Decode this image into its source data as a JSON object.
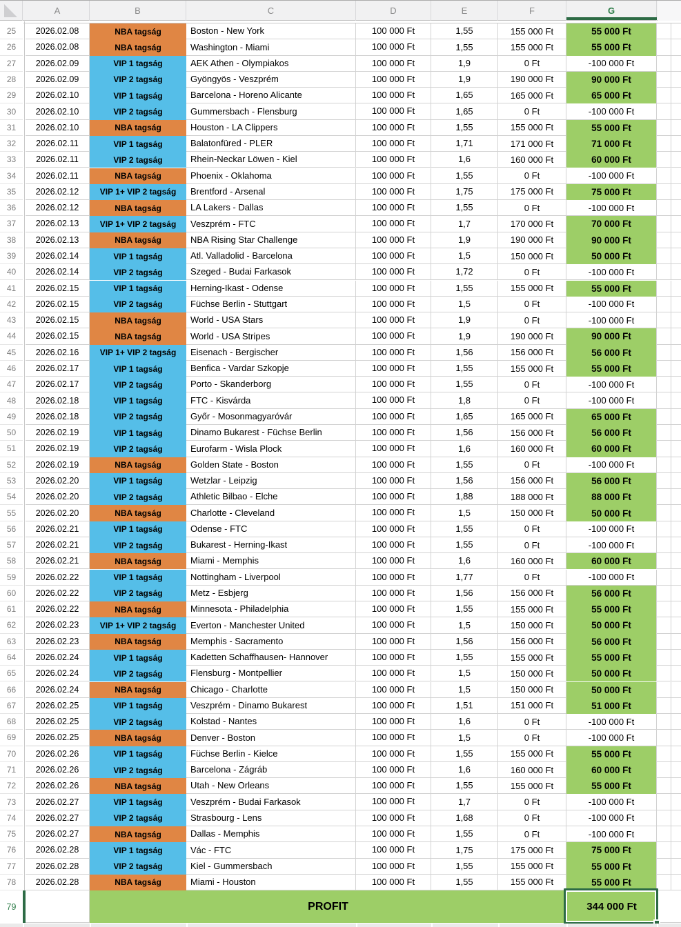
{
  "app": {
    "kind": "spreadsheet"
  },
  "colors": {
    "nba": "#E08644",
    "vip": "#55BEE8",
    "win_green": "#9DCE67",
    "selection_green": "#2D6B45",
    "selected_header_green": "#2E7D49"
  },
  "columns": {
    "letters": [
      "A",
      "B",
      "C",
      "D",
      "E",
      "F",
      "G"
    ],
    "selected_letter": "G"
  },
  "selection": {
    "cell": "G79"
  },
  "rows": [
    {
      "n": 25,
      "date": "2026.02.08",
      "member": "NBA tagság",
      "tier": "nba",
      "match": "Boston - New York",
      "stake": "100 000 Ft",
      "odds": "1,55",
      "payout": "155 000 Ft",
      "profit": "55 000 Ft",
      "win": true
    },
    {
      "n": 26,
      "date": "2026.02.08",
      "member": "NBA tagság",
      "tier": "nba",
      "match": "Washington - Miami",
      "stake": "100 000 Ft",
      "odds": "1,55",
      "payout": "155 000 Ft",
      "profit": "55 000 Ft",
      "win": true
    },
    {
      "n": 27,
      "date": "2026.02.09",
      "member": "VIP 1 tagság",
      "tier": "vip",
      "match": "AEK Athen - Olympiakos",
      "stake": "100 000 Ft",
      "odds": "1,9",
      "payout": "0 Ft",
      "profit": "-100 000 Ft",
      "win": false
    },
    {
      "n": 28,
      "date": "2026.02.09",
      "member": "VIP 2 tagság",
      "tier": "vip",
      "match": "Gyöngyös - Veszprém",
      "stake": "100 000 Ft",
      "odds": "1,9",
      "payout": "190 000 Ft",
      "profit": "90 000 Ft",
      "win": true
    },
    {
      "n": 29,
      "date": "2026.02.10",
      "member": "VIP 1 tagság",
      "tier": "vip",
      "match": "Barcelona - Horeno Alicante",
      "stake": "100 000 Ft",
      "odds": "1,65",
      "payout": "165 000 Ft",
      "profit": "65 000 Ft",
      "win": true
    },
    {
      "n": 30,
      "date": "2026.02.10",
      "member": "VIP 2 tagság",
      "tier": "vip",
      "match": "Gummersbach - Flensburg",
      "stake": "100 000 Ft",
      "odds": "1,65",
      "payout": "0 Ft",
      "profit": "-100 000 Ft",
      "win": false
    },
    {
      "n": 31,
      "date": "2026.02.10",
      "member": "NBA tagság",
      "tier": "nba",
      "match": "Houston - LA Clippers",
      "stake": "100 000 Ft",
      "odds": "1,55",
      "payout": "155 000 Ft",
      "profit": "55 000 Ft",
      "win": true
    },
    {
      "n": 32,
      "date": "2026.02.11",
      "member": "VIP 1 tagság",
      "tier": "vip",
      "match": "Balatonfüred - PLER",
      "stake": "100 000 Ft",
      "odds": "1,71",
      "payout": "171 000 Ft",
      "profit": "71 000 Ft",
      "win": true
    },
    {
      "n": 33,
      "date": "2026.02.11",
      "member": "VIP 2 tagság",
      "tier": "vip",
      "match": "Rhein-Neckar Löwen - Kiel",
      "stake": "100 000 Ft",
      "odds": "1,6",
      "payout": "160 000 Ft",
      "profit": "60 000 Ft",
      "win": true
    },
    {
      "n": 34,
      "date": "2026.02.11",
      "member": "NBA tagság",
      "tier": "nba",
      "match": "Phoenix - Oklahoma",
      "stake": "100 000 Ft",
      "odds": "1,55",
      "payout": "0 Ft",
      "profit": "-100 000 Ft",
      "win": false
    },
    {
      "n": 35,
      "date": "2026.02.12",
      "member": "VIP 1+ VIP 2 tagság",
      "tier": "vip",
      "match": "Brentford - Arsenal",
      "stake": "100 000 Ft",
      "odds": "1,75",
      "payout": "175 000 Ft",
      "profit": "75 000 Ft",
      "win": true
    },
    {
      "n": 36,
      "date": "2026.02.12",
      "member": "NBA tagság",
      "tier": "nba",
      "match": "LA Lakers - Dallas",
      "stake": "100 000 Ft",
      "odds": "1,55",
      "payout": "0 Ft",
      "profit": "-100 000 Ft",
      "win": false
    },
    {
      "n": 37,
      "date": "2026.02.13",
      "member": "VIP 1+ VIP 2 tagság",
      "tier": "vip",
      "match": "Veszprém - FTC",
      "stake": "100 000 Ft",
      "odds": "1,7",
      "payout": "170 000 Ft",
      "profit": "70 000 Ft",
      "win": true
    },
    {
      "n": 38,
      "date": "2026.02.13",
      "member": "NBA tagság",
      "tier": "nba",
      "match": "NBA Rising Star Challenge",
      "stake": "100 000 Ft",
      "odds": "1,9",
      "payout": "190 000 Ft",
      "profit": "90 000 Ft",
      "win": true
    },
    {
      "n": 39,
      "date": "2026.02.14",
      "member": "VIP 1 tagság",
      "tier": "vip",
      "match": "Atl. Valladolid - Barcelona",
      "stake": "100 000 Ft",
      "odds": "1,5",
      "payout": "150 000 Ft",
      "profit": "50 000 Ft",
      "win": true
    },
    {
      "n": 40,
      "date": "2026.02.14",
      "member": "VIP 2 tagság",
      "tier": "vip",
      "match": "Szeged - Budai Farkasok",
      "stake": "100 000 Ft",
      "odds": "1,72",
      "payout": "0 Ft",
      "profit": "-100 000 Ft",
      "win": false
    },
    {
      "n": 41,
      "date": "2026.02.15",
      "member": "VIP 1 tagság",
      "tier": "vip",
      "match": "Herning-Ikast - Odense",
      "stake": "100 000 Ft",
      "odds": "1,55",
      "payout": "155 000 Ft",
      "profit": "55 000 Ft",
      "win": true
    },
    {
      "n": 42,
      "date": "2026.02.15",
      "member": "VIP 2 tagság",
      "tier": "vip",
      "match": "Füchse Berlin - Stuttgart",
      "stake": "100 000 Ft",
      "odds": "1,5",
      "payout": "0 Ft",
      "profit": "-100 000 Ft",
      "win": false
    },
    {
      "n": 43,
      "date": "2026.02.15",
      "member": "NBA tagság",
      "tier": "nba",
      "match": "World - USA Stars",
      "stake": "100 000 Ft",
      "odds": "1,9",
      "payout": "0 Ft",
      "profit": "-100 000 Ft",
      "win": false
    },
    {
      "n": 44,
      "date": "2026.02.15",
      "member": "NBA tagság",
      "tier": "nba",
      "match": "World - USA Stripes",
      "stake": "100 000 Ft",
      "odds": "1,9",
      "payout": "190 000 Ft",
      "profit": "90 000 Ft",
      "win": true
    },
    {
      "n": 45,
      "date": "2026.02.16",
      "member": "VIP 1+ VIP 2 tagság",
      "tier": "vip",
      "match": "Eisenach - Bergischer",
      "stake": "100 000 Ft",
      "odds": "1,56",
      "payout": "156 000 Ft",
      "profit": "56 000 Ft",
      "win": true
    },
    {
      "n": 46,
      "date": "2026.02.17",
      "member": "VIP 1 tagság",
      "tier": "vip",
      "match": "Benfica - Vardar Szkopje",
      "stake": "100 000 Ft",
      "odds": "1,55",
      "payout": "155 000 Ft",
      "profit": "55 000 Ft",
      "win": true
    },
    {
      "n": 47,
      "date": "2026.02.17",
      "member": "VIP 2 tagság",
      "tier": "vip",
      "match": "Porto - Skanderborg",
      "stake": "100 000 Ft",
      "odds": "1,55",
      "payout": "0 Ft",
      "profit": "-100 000 Ft",
      "win": false
    },
    {
      "n": 48,
      "date": "2026.02.18",
      "member": "VIP 1 tagság",
      "tier": "vip",
      "match": "FTC - Kisvárda",
      "stake": "100 000 Ft",
      "odds": "1,8",
      "payout": "0 Ft",
      "profit": "-100 000 Ft",
      "win": false
    },
    {
      "n": 49,
      "date": "2026.02.18",
      "member": "VIP 2 tagság",
      "tier": "vip",
      "match": "Győr - Mosonmagyaróvár",
      "stake": "100 000 Ft",
      "odds": "1,65",
      "payout": "165 000 Ft",
      "profit": "65 000 Ft",
      "win": true
    },
    {
      "n": 50,
      "date": "2026.02.19",
      "member": "VIP 1 tagság",
      "tier": "vip",
      "match": "Dinamo Bukarest - Füchse Berlin",
      "stake": "100 000 Ft",
      "odds": "1,56",
      "payout": "156 000 Ft",
      "profit": "56 000 Ft",
      "win": true
    },
    {
      "n": 51,
      "date": "2026.02.19",
      "member": "VIP 2 tagság",
      "tier": "vip",
      "match": "Eurofarm - Wisla Plock",
      "stake": "100 000 Ft",
      "odds": "1,6",
      "payout": "160 000 Ft",
      "profit": "60 000 Ft",
      "win": true
    },
    {
      "n": 52,
      "date": "2026.02.19",
      "member": "NBA tagság",
      "tier": "nba",
      "match": "Golden State - Boston",
      "stake": "100 000 Ft",
      "odds": "1,55",
      "payout": "0 Ft",
      "profit": "-100 000 Ft",
      "win": false
    },
    {
      "n": 53,
      "date": "2026.02.20",
      "member": "VIP 1 tagság",
      "tier": "vip",
      "match": "Wetzlar - Leipzig",
      "stake": "100 000 Ft",
      "odds": "1,56",
      "payout": "156 000 Ft",
      "profit": "56 000 Ft",
      "win": true
    },
    {
      "n": 54,
      "date": "2026.02.20",
      "member": "VIP 2 tagság",
      "tier": "vip",
      "match": "Athletic Bilbao - Elche",
      "stake": "100 000 Ft",
      "odds": "1,88",
      "payout": "188 000 Ft",
      "profit": "88 000 Ft",
      "win": true
    },
    {
      "n": 55,
      "date": "2026.02.20",
      "member": "NBA tagság",
      "tier": "nba",
      "match": "Charlotte - Cleveland",
      "stake": "100 000 Ft",
      "odds": "1,5",
      "payout": "150 000 Ft",
      "profit": "50 000 Ft",
      "win": true
    },
    {
      "n": 56,
      "date": "2026.02.21",
      "member": "VIP 1 tagság",
      "tier": "vip",
      "match": "Odense - FTC",
      "stake": "100 000 Ft",
      "odds": "1,55",
      "payout": "0 Ft",
      "profit": "-100 000 Ft",
      "win": false
    },
    {
      "n": 57,
      "date": "2026.02.21",
      "member": "VIP 2 tagság",
      "tier": "vip",
      "match": "Bukarest - Herning-Ikast",
      "stake": "100 000 Ft",
      "odds": "1,55",
      "payout": "0 Ft",
      "profit": "-100 000 Ft",
      "win": false
    },
    {
      "n": 58,
      "date": "2026.02.21",
      "member": "NBA tagság",
      "tier": "nba",
      "match": "Miami - Memphis",
      "stake": "100 000 Ft",
      "odds": "1,6",
      "payout": "160 000 Ft",
      "profit": "60 000 Ft",
      "win": true
    },
    {
      "n": 59,
      "date": "2026.02.22",
      "member": "VIP 1 tagság",
      "tier": "vip",
      "match": "Nottingham - Liverpool",
      "stake": "100 000 Ft",
      "odds": "1,77",
      "payout": "0 Ft",
      "profit": "-100 000 Ft",
      "win": false
    },
    {
      "n": 60,
      "date": "2026.02.22",
      "member": "VIP 2 tagság",
      "tier": "vip",
      "match": "Metz - Esbjerg",
      "stake": "100 000 Ft",
      "odds": "1,56",
      "payout": "156 000 Ft",
      "profit": "56 000 Ft",
      "win": true
    },
    {
      "n": 61,
      "date": "2026.02.22",
      "member": "NBA tagság",
      "tier": "nba",
      "match": "Minnesota - Philadelphia",
      "stake": "100 000 Ft",
      "odds": "1,55",
      "payout": "155 000 Ft",
      "profit": "55 000 Ft",
      "win": true
    },
    {
      "n": 62,
      "date": "2026.02.23",
      "member": "VIP 1+ VIP 2 tagság",
      "tier": "vip",
      "match": "Everton - Manchester United",
      "stake": "100 000 Ft",
      "odds": "1,5",
      "payout": "150 000 Ft",
      "profit": "50 000 Ft",
      "win": true
    },
    {
      "n": 63,
      "date": "2026.02.23",
      "member": "NBA tagság",
      "tier": "nba",
      "match": "Memphis - Sacramento",
      "stake": "100 000 Ft",
      "odds": "1,56",
      "payout": "156 000 Ft",
      "profit": "56 000 Ft",
      "win": true
    },
    {
      "n": 64,
      "date": "2026.02.24",
      "member": "VIP 1 tagság",
      "tier": "vip",
      "match": "Kadetten Schaffhausen- Hannover",
      "stake": "100 000 Ft",
      "odds": "1,55",
      "payout": "155 000 Ft",
      "profit": "55 000 Ft",
      "win": true
    },
    {
      "n": 65,
      "date": "2026.02.24",
      "member": "VIP 2 tagság",
      "tier": "vip",
      "match": "Flensburg - Montpellier",
      "stake": "100 000 Ft",
      "odds": "1,5",
      "payout": "150 000 Ft",
      "profit": "50 000 Ft",
      "win": true
    },
    {
      "n": 66,
      "date": "2026.02.24",
      "member": "NBA tagság",
      "tier": "nba",
      "match": "Chicago - Charlotte",
      "stake": "100 000 Ft",
      "odds": "1,5",
      "payout": "150 000 Ft",
      "profit": "50 000 Ft",
      "win": true
    },
    {
      "n": 67,
      "date": "2026.02.25",
      "member": "VIP 1 tagság",
      "tier": "vip",
      "match": "Veszprém - Dinamo Bukarest",
      "stake": "100 000 Ft",
      "odds": "1,51",
      "payout": "151 000 Ft",
      "profit": "51 000 Ft",
      "win": true
    },
    {
      "n": 68,
      "date": "2026.02.25",
      "member": "VIP 2 tagság",
      "tier": "vip",
      "match": "Kolstad - Nantes",
      "stake": "100 000 Ft",
      "odds": "1,6",
      "payout": "0 Ft",
      "profit": "-100 000 Ft",
      "win": false
    },
    {
      "n": 69,
      "date": "2026.02.25",
      "member": "NBA tagság",
      "tier": "nba",
      "match": "Denver - Boston",
      "stake": "100 000 Ft",
      "odds": "1,5",
      "payout": "0 Ft",
      "profit": "-100 000 Ft",
      "win": false
    },
    {
      "n": 70,
      "date": "2026.02.26",
      "member": "VIP 1 tagság",
      "tier": "vip",
      "match": "Füchse Berlin - Kielce",
      "stake": "100 000 Ft",
      "odds": "1,55",
      "payout": "155 000 Ft",
      "profit": "55 000 Ft",
      "win": true
    },
    {
      "n": 71,
      "date": "2026.02.26",
      "member": "VIP 2 tagság",
      "tier": "vip",
      "match": "Barcelona - Zágráb",
      "stake": "100 000 Ft",
      "odds": "1,6",
      "payout": "160 000 Ft",
      "profit": "60 000 Ft",
      "win": true
    },
    {
      "n": 72,
      "date": "2026.02.26",
      "member": "NBA tagság",
      "tier": "nba",
      "match": "Utah - New Orleans",
      "stake": "100 000 Ft",
      "odds": "1,55",
      "payout": "155 000 Ft",
      "profit": "55 000 Ft",
      "win": true
    },
    {
      "n": 73,
      "date": "2026.02.27",
      "member": "VIP 1 tagság",
      "tier": "vip",
      "match": "Veszprém - Budai Farkasok",
      "stake": "100 000 Ft",
      "odds": "1,7",
      "payout": "0 Ft",
      "profit": "-100 000 Ft",
      "win": false
    },
    {
      "n": 74,
      "date": "2026.02.27",
      "member": "VIP 2 tagság",
      "tier": "vip",
      "match": "Strasbourg - Lens",
      "stake": "100 000 Ft",
      "odds": "1,68",
      "payout": "0 Ft",
      "profit": "-100 000 Ft",
      "win": false
    },
    {
      "n": 75,
      "date": "2026.02.27",
      "member": "NBA tagság",
      "tier": "nba",
      "match": "Dallas - Memphis",
      "stake": "100 000 Ft",
      "odds": "1,55",
      "payout": "0 Ft",
      "profit": "-100 000 Ft",
      "win": false
    },
    {
      "n": 76,
      "date": "2026.02.28",
      "member": "VIP 1 tagság",
      "tier": "vip",
      "match": "Vác - FTC",
      "stake": "100 000 Ft",
      "odds": "1,75",
      "payout": "175 000 Ft",
      "profit": "75 000 Ft",
      "win": true
    },
    {
      "n": 77,
      "date": "2026.02.28",
      "member": "VIP 2 tagság",
      "tier": "vip",
      "match": "Kiel - Gummersbach",
      "stake": "100 000 Ft",
      "odds": "1,55",
      "payout": "155 000 Ft",
      "profit": "55 000 Ft",
      "win": true
    },
    {
      "n": 78,
      "date": "2026.02.28",
      "member": "NBA tagság",
      "tier": "nba",
      "match": "Miami - Houston",
      "stake": "100 000 Ft",
      "odds": "1,55",
      "payout": "155 000 Ft",
      "profit": "55 000 Ft",
      "win": true
    }
  ],
  "summary": {
    "row_label": "79",
    "label": "PROFIT",
    "total": "344 000 Ft"
  }
}
